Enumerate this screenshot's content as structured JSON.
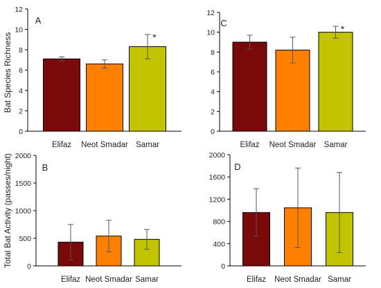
{
  "figure": {
    "ylabel_top": "Bat Species Richness",
    "ylabel_bottom": "Total Bat Activity (passes/night)"
  },
  "chart_data": [
    {
      "panel": "A",
      "type": "bar",
      "categories": [
        "Elifaz",
        "Neot Smadar",
        "Samar"
      ],
      "values": [
        7.1,
        6.6,
        8.3
      ],
      "errors": [
        0.2,
        0.4,
        1.2
      ],
      "colors": [
        "#7a0a0a",
        "#ff8000",
        "#c3c400"
      ],
      "significance": [
        "",
        "",
        "*"
      ],
      "ylim": [
        0,
        12
      ],
      "yticks": [
        0,
        2,
        4,
        6,
        8,
        10,
        12
      ],
      "show_xticklabels": true
    },
    {
      "panel": "C",
      "type": "bar",
      "categories": [
        "Elifaz",
        "Neot Smadar",
        "Samar"
      ],
      "values": [
        9.0,
        8.2,
        10.0
      ],
      "errors": [
        0.7,
        1.3,
        0.6
      ],
      "colors": [
        "#7a0a0a",
        "#ff8000",
        "#c3c400"
      ],
      "significance": [
        "",
        "",
        "*"
      ],
      "ylim": [
        0,
        12
      ],
      "yticks": [
        0,
        2,
        4,
        6,
        8,
        10,
        12
      ],
      "show_xticklabels": true
    },
    {
      "panel": "B",
      "type": "bar",
      "categories": [
        "Elifaz",
        "Neot Smadar",
        "Samar"
      ],
      "values": [
        430,
        540,
        480
      ],
      "errors": [
        320,
        285,
        180
      ],
      "colors": [
        "#7a0a0a",
        "#ff8000",
        "#c3c400"
      ],
      "significance": [
        "",
        "",
        ""
      ],
      "ylim": [
        0,
        2000
      ],
      "yticks": [
        0,
        500,
        1000,
        1500,
        2000
      ],
      "show_xticklabels": true
    },
    {
      "panel": "D",
      "type": "bar",
      "categories": [
        "Elifaz",
        "Neot Smadar",
        "Samar"
      ],
      "values": [
        960,
        1045,
        960
      ],
      "errors": [
        430,
        715,
        720
      ],
      "colors": [
        "#7a0a0a",
        "#ff8000",
        "#c3c400"
      ],
      "significance": [
        "",
        "",
        ""
      ],
      "ylim": [
        0,
        2000
      ],
      "yticks": [
        0,
        400,
        800,
        1200,
        1600,
        2000
      ],
      "show_xticklabels": true
    }
  ]
}
